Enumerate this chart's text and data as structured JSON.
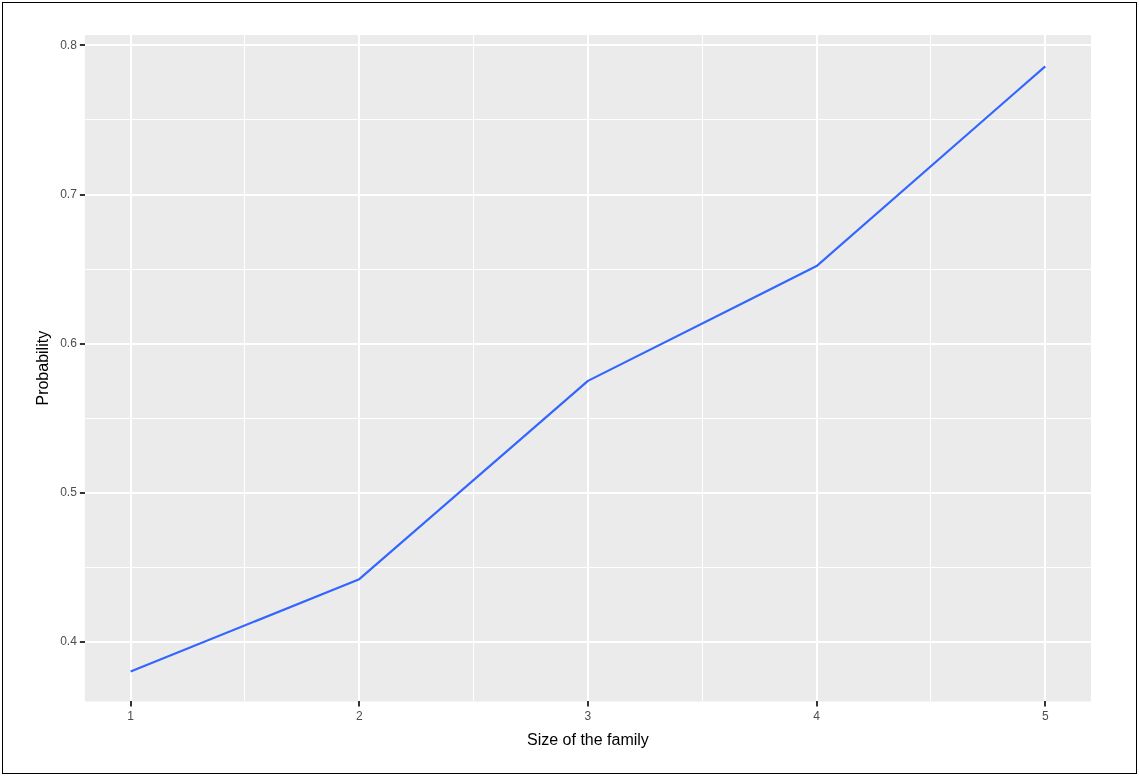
{
  "chart_data": {
    "type": "line",
    "xlabel": "Size of the family",
    "ylabel": "Probability",
    "x": [
      1,
      2,
      3,
      4,
      5
    ],
    "series": [
      {
        "color": "#3366ff",
        "values": [
          0.38,
          0.442,
          0.575,
          0.652,
          0.786
        ]
      }
    ],
    "xlim": [
      0.8,
      5.2
    ],
    "ylim": [
      0.36,
      0.807
    ],
    "xticks": [
      1,
      {
        "value": 1.5,
        "label": null
      },
      2,
      {
        "value": 2.5,
        "label": null
      },
      3,
      {
        "value": 3.5,
        "label": null
      },
      4,
      {
        "value": 4.5,
        "label": null
      },
      5
    ],
    "yticks": [
      0.4,
      {
        "value": 0.45,
        "label": null
      },
      0.5,
      {
        "value": 0.55,
        "label": null
      },
      0.6,
      {
        "value": 0.65,
        "label": null
      },
      0.7,
      {
        "value": 0.75,
        "label": null
      },
      0.8
    ],
    "grid": true,
    "legend": false,
    "marker": "none",
    "line_style": "solid"
  }
}
